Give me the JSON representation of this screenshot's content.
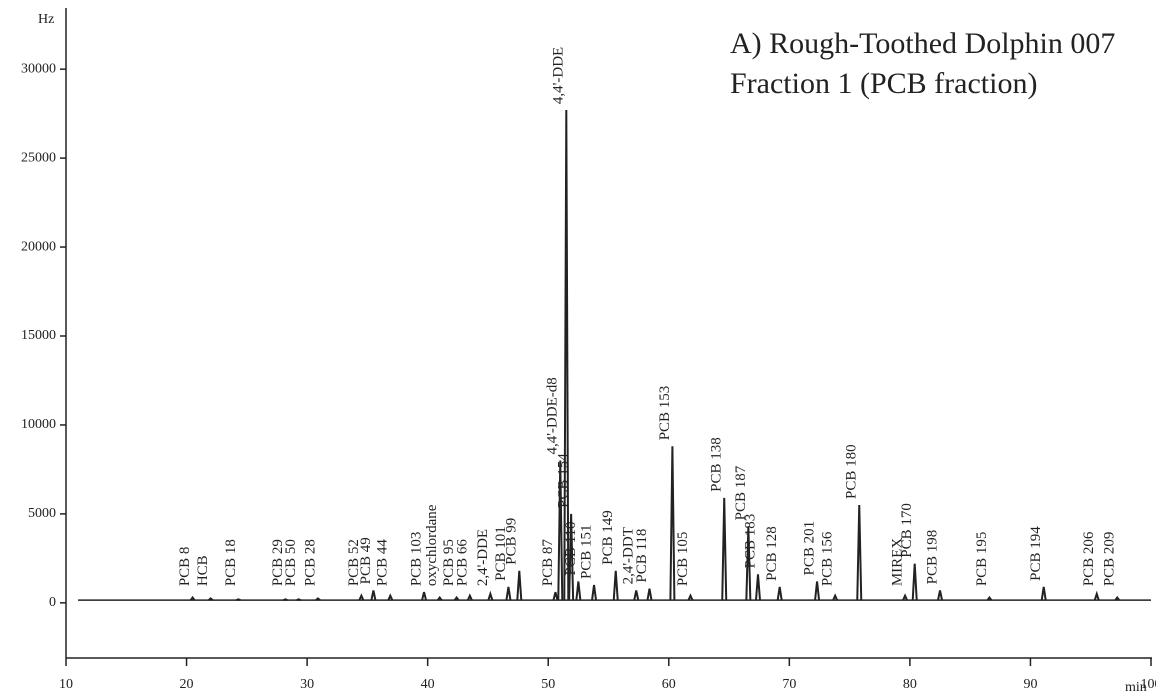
{
  "chart_data": {
    "type": "chromatogram",
    "title": "A) Rough-Toothed Dolphin 007",
    "subtitle": "Fraction 1 (PCB fraction)",
    "y_label": "Hz",
    "x_label": "min",
    "xlim": [
      10,
      100
    ],
    "xticks": [
      10,
      20,
      30,
      40,
      50,
      60,
      70,
      80,
      90,
      100
    ],
    "ylim": [
      -3100,
      33100
    ],
    "yticks": [
      0,
      5000,
      10000,
      15000,
      20000,
      25000,
      30000
    ],
    "color": "#222222",
    "baseline": 150,
    "x": [
      20.5,
      22.0,
      24.3,
      28.2,
      29.3,
      30.9,
      34.5,
      35.5,
      36.9,
      39.7,
      41.0,
      42.4,
      43.5,
      45.2,
      46.7,
      47.6,
      50.6,
      51.0,
      51.5,
      51.9,
      52.5,
      53.8,
      55.6,
      57.3,
      58.4,
      60.3,
      61.8,
      64.6,
      66.6,
      67.4,
      69.2,
      72.3,
      73.8,
      75.8,
      79.6,
      80.4,
      82.5,
      86.6,
      91.1,
      95.5,
      97.2
    ],
    "values": [
      300,
      250,
      200,
      200,
      200,
      250,
      400,
      700,
      400,
      600,
      300,
      300,
      400,
      500,
      900,
      1800,
      600,
      8000,
      27700,
      5000,
      1200,
      1000,
      1800,
      700,
      800,
      8800,
      400,
      5900,
      4300,
      1600,
      900,
      1200,
      400,
      5500,
      400,
      2200,
      700,
      300,
      900,
      500,
      300
    ],
    "peak_labels": [
      "PCB 8",
      "HCB",
      "PCB 18",
      "PCB 29",
      "PCB 50",
      "PCB 28",
      "PCB 52",
      "PCB 49",
      "PCB 44",
      "PCB 103",
      "oxychlordane",
      "PCB 95",
      "PCB 66",
      "2,4'-DDE",
      "PCB 101",
      "PCB 99",
      "PCB 87",
      "4,4'-DDE-d8",
      "4,4'-DDE",
      "PCB 154",
      "PCB 110",
      "PCB 151",
      "PCB 149",
      "2,4'-DDT",
      "PCB 118",
      "PCB 153",
      "PCB 105",
      "PCB 138",
      "PCB 187",
      "PCB 183",
      "PCB 128",
      "PCB 201",
      "PCB 156",
      "PCB 180",
      "MIREX",
      "PCB 170",
      "PCB 198",
      "PCB 195",
      "PCB 194",
      "PCB 206",
      "PCB 209"
    ]
  }
}
